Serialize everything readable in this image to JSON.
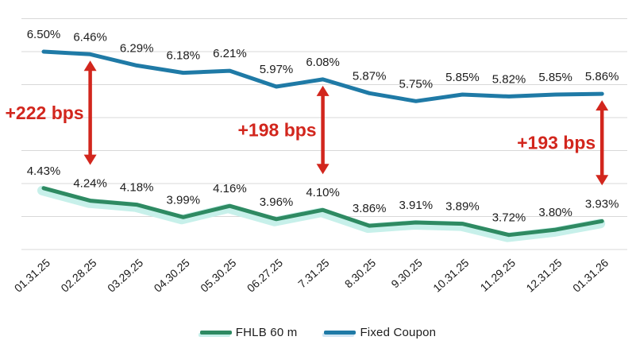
{
  "chart_data": {
    "type": "line",
    "title": "",
    "xlabel": "",
    "ylabel": "",
    "x": [
      "01.31.25",
      "02.28.25",
      "03.29.25",
      "04.30.25",
      "05.30.25",
      "06.27.25",
      "7.31.25",
      "8.30.25",
      "9.30.25",
      "10.31.25",
      "11.29.25",
      "12.31.25",
      "01.31.26"
    ],
    "series": [
      {
        "name": "FHLB 60 m",
        "color": "#2e8a62",
        "glow_color": "#c7f0ea",
        "values": [
          4.43,
          4.24,
          4.18,
          3.99,
          4.16,
          3.96,
          4.1,
          3.86,
          3.91,
          3.89,
          3.72,
          3.8,
          3.93
        ]
      },
      {
        "name": "Fixed Coupon",
        "color": "#1f7aa6",
        "glow_color": "#d3e6f4",
        "values": [
          6.5,
          6.46,
          6.29,
          6.18,
          6.21,
          5.97,
          6.08,
          5.87,
          5.75,
          5.85,
          5.82,
          5.85,
          5.86
        ]
      }
    ],
    "point_label_format": "0.00%",
    "point_label_color": "#1c1c1c",
    "gridline_values": [
      7.0,
      6.5,
      6.0,
      5.5,
      5.0,
      4.5,
      4.0,
      3.5
    ],
    "ylim": [
      3.3,
      7.1
    ],
    "grid": "on",
    "grid_color": "#d8d8d8",
    "legend_position": "bottom",
    "annotations": [
      {
        "label": "+222 bps",
        "x": "02.28.25"
      },
      {
        "label": "+198 bps",
        "x": "7.31.25"
      },
      {
        "label": "+193 bps",
        "x": "01.31.26"
      }
    ],
    "annotation_color": "#d2261d"
  }
}
